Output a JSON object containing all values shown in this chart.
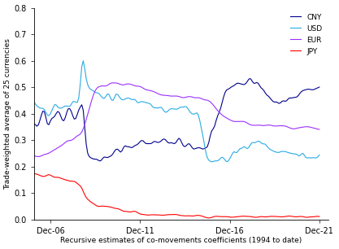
{
  "xlabel": "Recursive estimates of co-movements coefficients (1994 to date)",
  "ylabel": "Trade-weighted average of 25 currencies",
  "ylim": [
    0.0,
    0.8
  ],
  "yticks": [
    0.0,
    0.1,
    0.2,
    0.3,
    0.4,
    0.5,
    0.6,
    0.7,
    0.8
  ],
  "xtick_labels": [
    "Dec-06",
    "Dec-11",
    "Dec-16",
    "Dec-21"
  ],
  "colors": {
    "CNY": "#00008B",
    "USD": "#29ABE2",
    "EUR": "#9B30FF",
    "JPY": "#FF0000"
  },
  "linewidth": 0.8
}
